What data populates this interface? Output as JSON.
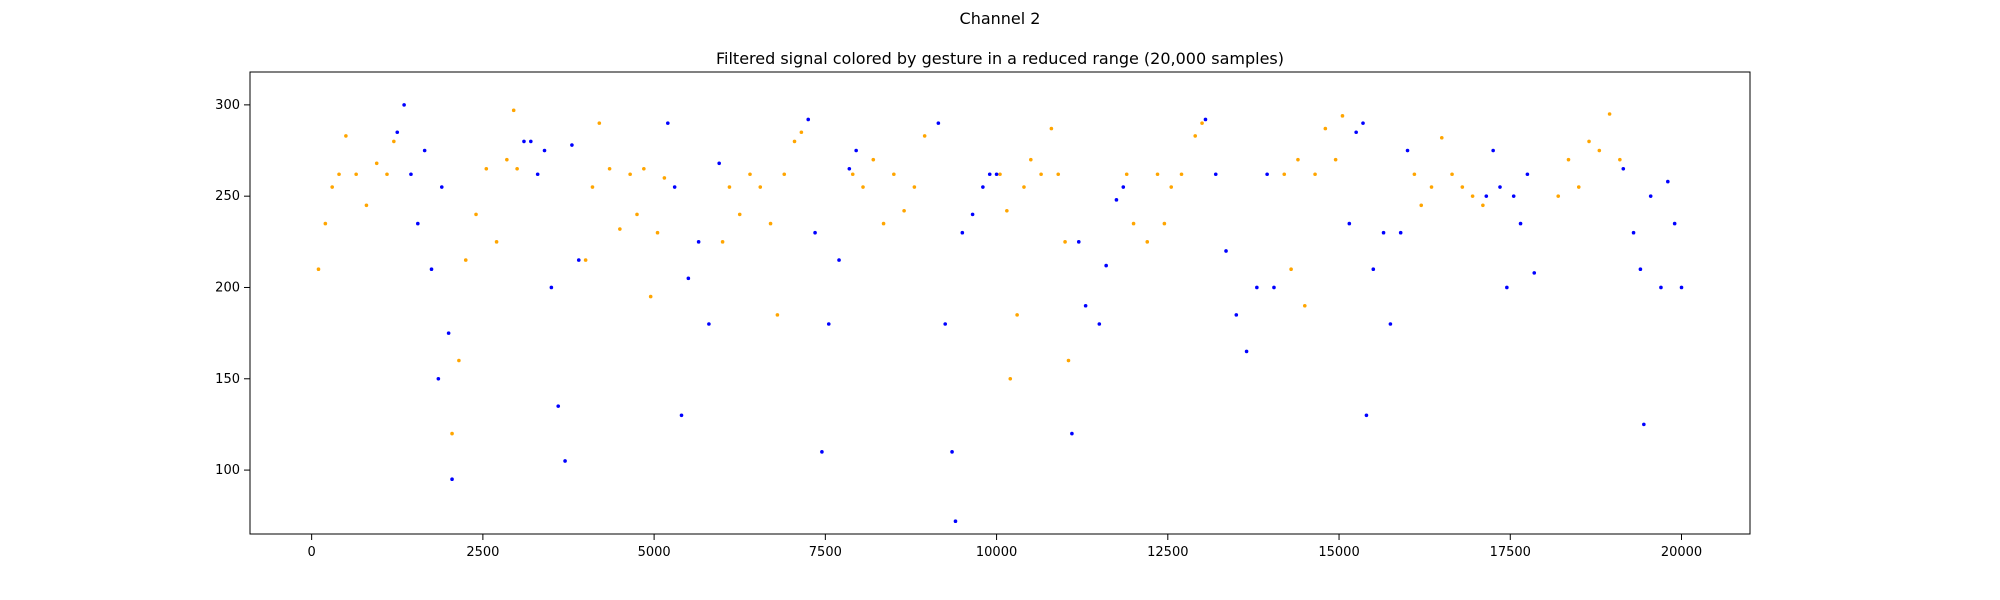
{
  "figure": {
    "suptitle": "Channel 2",
    "title": "Filtered signal colored by gesture in a reduced range (20,000 samples)"
  },
  "chart_data": {
    "type": "scatter",
    "title": "Filtered signal colored by gesture in a reduced range (20,000 samples)",
    "suptitle": "Channel 2",
    "xlabel": "",
    "ylabel": "",
    "xlim": [
      -900,
      21000
    ],
    "ylim": [
      65,
      318
    ],
    "xticks": [
      0,
      2500,
      5000,
      7500,
      10000,
      12500,
      15000,
      17500,
      20000
    ],
    "yticks": [
      100,
      150,
      200,
      250,
      300
    ],
    "grid": false,
    "legend": "none",
    "colors": {
      "gesture_a": "#ffa500",
      "gesture_b": "#0000ff"
    },
    "series": [
      {
        "color": "#ffa500",
        "points": [
          [
            100,
            210
          ],
          [
            200,
            235
          ],
          [
            300,
            255
          ],
          [
            400,
            262
          ],
          [
            500,
            283
          ],
          [
            650,
            262
          ],
          [
            800,
            245
          ],
          [
            950,
            268
          ],
          [
            1100,
            262
          ],
          [
            1200,
            280
          ],
          [
            2050,
            120
          ],
          [
            2150,
            160
          ],
          [
            2250,
            215
          ],
          [
            2400,
            240
          ],
          [
            2550,
            265
          ],
          [
            2700,
            225
          ],
          [
            2850,
            270
          ],
          [
            2950,
            297
          ],
          [
            3000,
            265
          ],
          [
            4000,
            215
          ],
          [
            4100,
            255
          ],
          [
            4200,
            290
          ],
          [
            4350,
            265
          ],
          [
            4500,
            232
          ],
          [
            4650,
            262
          ],
          [
            4750,
            240
          ],
          [
            4850,
            265
          ],
          [
            4950,
            195
          ],
          [
            5050,
            230
          ],
          [
            5150,
            260
          ],
          [
            6000,
            225
          ],
          [
            6100,
            255
          ],
          [
            6250,
            240
          ],
          [
            6400,
            262
          ],
          [
            6550,
            255
          ],
          [
            6700,
            235
          ],
          [
            6800,
            185
          ],
          [
            6900,
            262
          ],
          [
            7050,
            280
          ],
          [
            7150,
            285
          ],
          [
            7900,
            262
          ],
          [
            8050,
            255
          ],
          [
            8200,
            270
          ],
          [
            8350,
            235
          ],
          [
            8500,
            262
          ],
          [
            8650,
            242
          ],
          [
            8800,
            255
          ],
          [
            8950,
            283
          ],
          [
            10050,
            262
          ],
          [
            10150,
            242
          ],
          [
            10200,
            150
          ],
          [
            10300,
            185
          ],
          [
            10400,
            255
          ],
          [
            10500,
            270
          ],
          [
            10650,
            262
          ],
          [
            10800,
            287
          ],
          [
            10900,
            262
          ],
          [
            11000,
            225
          ],
          [
            11050,
            160
          ],
          [
            11900,
            262
          ],
          [
            12000,
            235
          ],
          [
            12200,
            225
          ],
          [
            12350,
            262
          ],
          [
            12450,
            235
          ],
          [
            12550,
            255
          ],
          [
            12700,
            262
          ],
          [
            12900,
            283
          ],
          [
            13000,
            290
          ],
          [
            14200,
            262
          ],
          [
            14300,
            210
          ],
          [
            14400,
            270
          ],
          [
            14500,
            190
          ],
          [
            14650,
            262
          ],
          [
            14800,
            287
          ],
          [
            14950,
            270
          ],
          [
            15050,
            294
          ],
          [
            16100,
            262
          ],
          [
            16200,
            245
          ],
          [
            16350,
            255
          ],
          [
            16500,
            282
          ],
          [
            16650,
            262
          ],
          [
            16800,
            255
          ],
          [
            16950,
            250
          ],
          [
            17100,
            245
          ],
          [
            18200,
            250
          ],
          [
            18350,
            270
          ],
          [
            18500,
            255
          ],
          [
            18650,
            280
          ],
          [
            18800,
            275
          ],
          [
            18950,
            295
          ],
          [
            19100,
            270
          ]
        ]
      },
      {
        "color": "#0000ff",
        "points": [
          [
            1250,
            285
          ],
          [
            1350,
            300
          ],
          [
            1450,
            262
          ],
          [
            1550,
            235
          ],
          [
            1650,
            275
          ],
          [
            1750,
            210
          ],
          [
            1850,
            150
          ],
          [
            1900,
            255
          ],
          [
            2000,
            175
          ],
          [
            2050,
            95
          ],
          [
            3100,
            280
          ],
          [
            3200,
            280
          ],
          [
            3300,
            262
          ],
          [
            3400,
            275
          ],
          [
            3500,
            200
          ],
          [
            3600,
            135
          ],
          [
            3700,
            105
          ],
          [
            3800,
            278
          ],
          [
            3900,
            215
          ],
          [
            5200,
            290
          ],
          [
            5300,
            255
          ],
          [
            5400,
            130
          ],
          [
            5500,
            205
          ],
          [
            5650,
            225
          ],
          [
            5800,
            180
          ],
          [
            5950,
            268
          ],
          [
            7250,
            292
          ],
          [
            7350,
            230
          ],
          [
            7450,
            110
          ],
          [
            7550,
            180
          ],
          [
            7700,
            215
          ],
          [
            7850,
            265
          ],
          [
            7950,
            275
          ],
          [
            9150,
            290
          ],
          [
            9250,
            180
          ],
          [
            9350,
            110
          ],
          [
            9400,
            72
          ],
          [
            9500,
            230
          ],
          [
            9650,
            240
          ],
          [
            9800,
            255
          ],
          [
            9900,
            262
          ],
          [
            10000,
            262
          ],
          [
            11100,
            120
          ],
          [
            11200,
            225
          ],
          [
            11300,
            190
          ],
          [
            11500,
            180
          ],
          [
            11600,
            212
          ],
          [
            11750,
            248
          ],
          [
            11850,
            255
          ],
          [
            13050,
            292
          ],
          [
            13200,
            262
          ],
          [
            13350,
            220
          ],
          [
            13500,
            185
          ],
          [
            13650,
            165
          ],
          [
            13800,
            200
          ],
          [
            13950,
            262
          ],
          [
            14050,
            200
          ],
          [
            15150,
            235
          ],
          [
            15250,
            285
          ],
          [
            15350,
            290
          ],
          [
            15400,
            130
          ],
          [
            15500,
            210
          ],
          [
            15650,
            230
          ],
          [
            15750,
            180
          ],
          [
            15900,
            230
          ],
          [
            16000,
            275
          ],
          [
            17150,
            250
          ],
          [
            17250,
            275
          ],
          [
            17350,
            255
          ],
          [
            17450,
            200
          ],
          [
            17550,
            250
          ],
          [
            17650,
            235
          ],
          [
            17750,
            262
          ],
          [
            17850,
            208
          ],
          [
            19150,
            265
          ],
          [
            19300,
            230
          ],
          [
            19400,
            210
          ],
          [
            19450,
            125
          ],
          [
            19550,
            250
          ],
          [
            19700,
            200
          ],
          [
            19800,
            258
          ],
          [
            19900,
            235
          ],
          [
            20000,
            200
          ]
        ]
      }
    ]
  }
}
